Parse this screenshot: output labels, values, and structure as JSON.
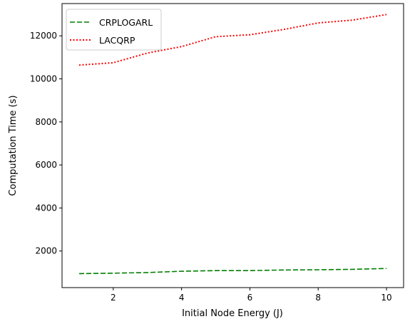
{
  "chart_data": {
    "type": "line",
    "title": "",
    "xlabel": "Initial Node Energy (J)",
    "ylabel": "Computation Time (s)",
    "xlim": [
      0.5,
      10.5
    ],
    "ylim": [
      300,
      13500
    ],
    "xticks": [
      2,
      4,
      6,
      8,
      10
    ],
    "yticks": [
      2000,
      4000,
      6000,
      8000,
      10000,
      12000
    ],
    "grid": false,
    "legend_position": "top-left",
    "x": [
      1,
      2,
      3,
      4,
      5,
      6,
      7,
      8,
      9,
      10
    ],
    "series": [
      {
        "name": "CRPLOGARL",
        "color": "#008000",
        "linestyle": "dashed",
        "values": [
          950,
          970,
          1000,
          1060,
          1090,
          1090,
          1120,
          1130,
          1150,
          1190
        ]
      },
      {
        "name": "LACQRP",
        "color": "#ff0000",
        "linestyle": "dotted",
        "values": [
          10640,
          10750,
          11200,
          11500,
          11960,
          12050,
          12300,
          12600,
          12730,
          12990
        ]
      }
    ]
  }
}
